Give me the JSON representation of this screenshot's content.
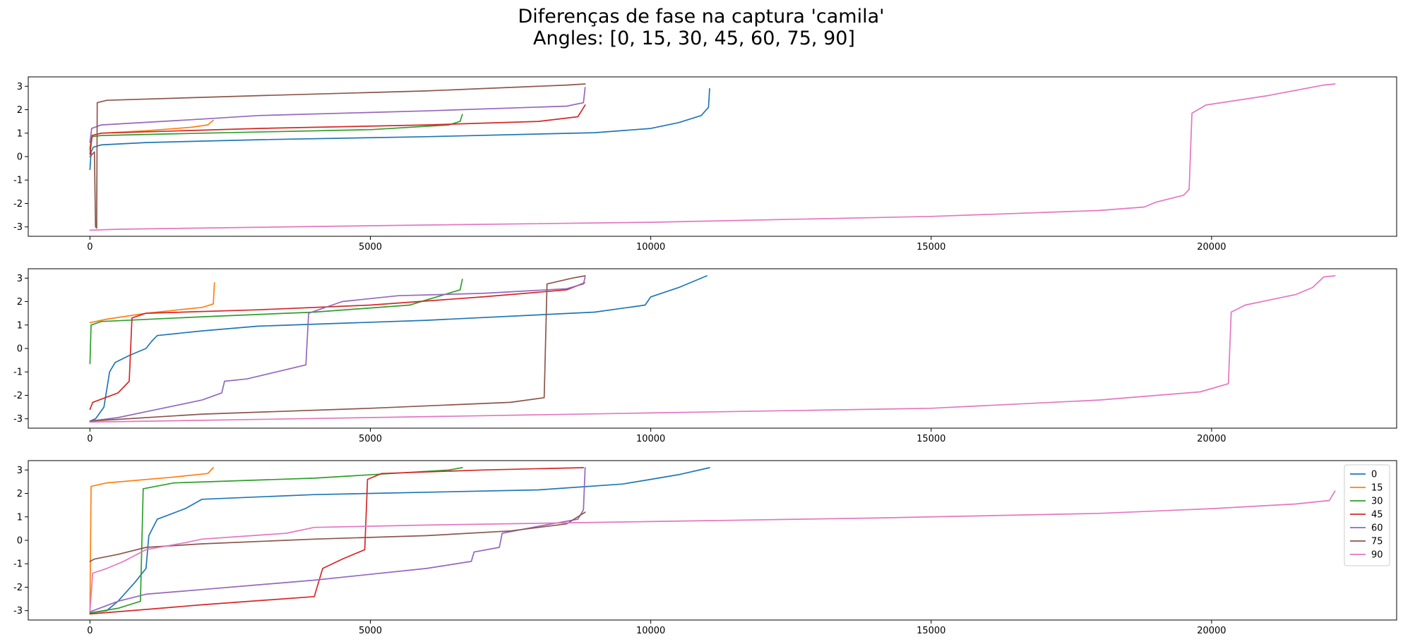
{
  "title": {
    "line1": "Diferenças de fase na captura 'camila'",
    "line2": "Angles: [0, 15, 30, 45, 60, 75, 90]"
  },
  "chart_data": [
    {
      "type": "line",
      "xlim": [
        -1100,
        23300
      ],
      "ylim": [
        -3.4,
        3.4
      ],
      "xticks": [
        0,
        5000,
        10000,
        15000,
        20000
      ],
      "xtick_labels": [
        "0",
        "5000",
        "10000",
        "15000",
        "20000"
      ],
      "yticks": [
        -3,
        -2,
        -1,
        0,
        1,
        2,
        3
      ],
      "ytick_labels": [
        "-3",
        "-2",
        "-1",
        "0",
        "1",
        "2",
        "3"
      ],
      "series": [
        {
          "color": "#1f77b4",
          "points": [
            [
              0,
              -0.55
            ],
            [
              20,
              0.2
            ],
            [
              60,
              0.4
            ],
            [
              200,
              0.5
            ],
            [
              1000,
              0.6
            ],
            [
              3000,
              0.72
            ],
            [
              6000,
              0.85
            ],
            [
              9000,
              1.02
            ],
            [
              10000,
              1.2
            ],
            [
              10500,
              1.45
            ],
            [
              10900,
              1.75
            ],
            [
              11030,
              2.1
            ],
            [
              11050,
              2.9
            ]
          ]
        },
        {
          "color": "#ff7f0e",
          "points": [
            [
              0,
              0.4
            ],
            [
              40,
              0.9
            ],
            [
              200,
              1.0
            ],
            [
              1000,
              1.1
            ],
            [
              1800,
              1.25
            ],
            [
              2100,
              1.35
            ],
            [
              2200,
              1.55
            ]
          ]
        },
        {
          "color": "#2ca02c",
          "points": [
            [
              0,
              0.3
            ],
            [
              40,
              0.85
            ],
            [
              200,
              0.9
            ],
            [
              2000,
              1.0
            ],
            [
              5000,
              1.15
            ],
            [
              6400,
              1.35
            ],
            [
              6600,
              1.5
            ],
            [
              6640,
              1.8
            ]
          ]
        },
        {
          "color": "#d62728",
          "points": [
            [
              0,
              0.1
            ],
            [
              40,
              0.9
            ],
            [
              200,
              1.0
            ],
            [
              3000,
              1.2
            ],
            [
              6000,
              1.35
            ],
            [
              8000,
              1.5
            ],
            [
              8700,
              1.7
            ],
            [
              8830,
              2.2
            ]
          ]
        },
        {
          "color": "#9467bd",
          "points": [
            [
              0,
              0.6
            ],
            [
              30,
              1.2
            ],
            [
              200,
              1.35
            ],
            [
              2000,
              1.6
            ],
            [
              3000,
              1.75
            ],
            [
              6000,
              1.95
            ],
            [
              8500,
              2.15
            ],
            [
              8800,
              2.3
            ],
            [
              8830,
              2.95
            ]
          ]
        },
        {
          "color": "#8c564b",
          "points": [
            [
              0,
              0.0
            ],
            [
              80,
              0.2
            ],
            [
              100,
              -3.0
            ],
            [
              120,
              -3.05
            ],
            [
              130,
              2.3
            ],
            [
              300,
              2.4
            ],
            [
              3000,
              2.6
            ],
            [
              6000,
              2.8
            ],
            [
              8500,
              3.05
            ],
            [
              8830,
              3.1
            ]
          ]
        },
        {
          "color": "#e377c2",
          "points": [
            [
              0,
              -3.14
            ],
            [
              500,
              -3.1
            ],
            [
              5000,
              -2.95
            ],
            [
              10000,
              -2.8
            ],
            [
              15000,
              -2.55
            ],
            [
              18000,
              -2.3
            ],
            [
              18800,
              -2.15
            ],
            [
              19000,
              -1.95
            ],
            [
              19500,
              -1.65
            ],
            [
              19600,
              -1.4
            ],
            [
              19650,
              1.85
            ],
            [
              19900,
              2.2
            ],
            [
              21000,
              2.6
            ],
            [
              22000,
              3.05
            ],
            [
              22200,
              3.1
            ]
          ]
        }
      ]
    },
    {
      "type": "line",
      "xlim": [
        -1100,
        23300
      ],
      "ylim": [
        -3.4,
        3.4
      ],
      "xticks": [
        0,
        5000,
        10000,
        15000,
        20000
      ],
      "xtick_labels": [
        "0",
        "5000",
        "10000",
        "15000",
        "20000"
      ],
      "yticks": [
        -3,
        -2,
        -1,
        0,
        1,
        2,
        3
      ],
      "ytick_labels": [
        "-3",
        "-2",
        "-1",
        "0",
        "1",
        "2",
        "3"
      ],
      "series": [
        {
          "color": "#1f77b4",
          "points": [
            [
              0,
              -3.1
            ],
            [
              100,
              -3.0
            ],
            [
              250,
              -2.5
            ],
            [
              350,
              -1.0
            ],
            [
              450,
              -0.6
            ],
            [
              700,
              -0.3
            ],
            [
              1000,
              0.0
            ],
            [
              1100,
              0.3
            ],
            [
              1200,
              0.55
            ],
            [
              2000,
              0.75
            ],
            [
              3000,
              0.95
            ],
            [
              6000,
              1.2
            ],
            [
              9000,
              1.55
            ],
            [
              9900,
              1.85
            ],
            [
              10000,
              2.2
            ],
            [
              10500,
              2.6
            ],
            [
              11000,
              3.1
            ]
          ]
        },
        {
          "color": "#ff7f0e",
          "points": [
            [
              0,
              1.1
            ],
            [
              300,
              1.25
            ],
            [
              1000,
              1.5
            ],
            [
              2000,
              1.75
            ],
            [
              2200,
              1.9
            ],
            [
              2220,
              2.8
            ]
          ]
        },
        {
          "color": "#2ca02c",
          "points": [
            [
              0,
              -0.65
            ],
            [
              20,
              1.0
            ],
            [
              200,
              1.15
            ],
            [
              2000,
              1.35
            ],
            [
              4000,
              1.55
            ],
            [
              5700,
              1.85
            ],
            [
              6600,
              2.5
            ],
            [
              6640,
              2.95
            ]
          ]
        },
        {
          "color": "#d62728",
          "points": [
            [
              0,
              -2.6
            ],
            [
              50,
              -2.3
            ],
            [
              500,
              -1.9
            ],
            [
              700,
              -1.4
            ],
            [
              750,
              1.3
            ],
            [
              1000,
              1.5
            ],
            [
              3000,
              1.65
            ],
            [
              5000,
              1.85
            ],
            [
              7000,
              2.2
            ],
            [
              8500,
              2.5
            ],
            [
              8820,
              2.8
            ]
          ]
        },
        {
          "color": "#9467bd",
          "points": [
            [
              0,
              -3.1
            ],
            [
              500,
              -2.95
            ],
            [
              1000,
              -2.7
            ],
            [
              2000,
              -2.2
            ],
            [
              2350,
              -1.9
            ],
            [
              2400,
              -1.4
            ],
            [
              2800,
              -1.3
            ],
            [
              3500,
              -0.9
            ],
            [
              3850,
              -0.7
            ],
            [
              3900,
              1.5
            ],
            [
              4500,
              2.0
            ],
            [
              5500,
              2.25
            ],
            [
              7000,
              2.35
            ],
            [
              8500,
              2.55
            ],
            [
              8800,
              2.75
            ],
            [
              8830,
              3.05
            ]
          ]
        },
        {
          "color": "#8c564b",
          "points": [
            [
              0,
              -3.1
            ],
            [
              2000,
              -2.8
            ],
            [
              5000,
              -2.55
            ],
            [
              7500,
              -2.3
            ],
            [
              8100,
              -2.1
            ],
            [
              8150,
              2.75
            ],
            [
              8600,
              3.0
            ],
            [
              8830,
              3.1
            ]
          ]
        },
        {
          "color": "#e377c2",
          "points": [
            [
              0,
              -3.14
            ],
            [
              5000,
              -2.95
            ],
            [
              10000,
              -2.75
            ],
            [
              15000,
              -2.55
            ],
            [
              18000,
              -2.2
            ],
            [
              19800,
              -1.85
            ],
            [
              20300,
              -1.5
            ],
            [
              20350,
              1.55
            ],
            [
              20600,
              1.85
            ],
            [
              21500,
              2.3
            ],
            [
              21800,
              2.6
            ],
            [
              22000,
              3.05
            ],
            [
              22200,
              3.1
            ]
          ]
        }
      ]
    },
    {
      "type": "line",
      "xlim": [
        -1100,
        23300
      ],
      "ylim": [
        -3.4,
        3.4
      ],
      "xticks": [
        0,
        5000,
        10000,
        15000,
        20000
      ],
      "xtick_labels": [
        "0",
        "5000",
        "10000",
        "15000",
        "20000"
      ],
      "yticks": [
        -3,
        -2,
        -1,
        0,
        1,
        2,
        3
      ],
      "ytick_labels": [
        "-3",
        "-2",
        "-1",
        "0",
        "1",
        "2",
        "3"
      ],
      "legend_position": "top-right",
      "series": [
        {
          "name": "0",
          "color": "#1f77b4",
          "points": [
            [
              0,
              -3.1
            ],
            [
              300,
              -3.0
            ],
            [
              500,
              -2.6
            ],
            [
              800,
              -1.8
            ],
            [
              1000,
              -1.2
            ],
            [
              1050,
              0.2
            ],
            [
              1200,
              0.9
            ],
            [
              1700,
              1.35
            ],
            [
              2000,
              1.75
            ],
            [
              4000,
              1.95
            ],
            [
              8000,
              2.15
            ],
            [
              9500,
              2.4
            ],
            [
              10000,
              2.6
            ],
            [
              10500,
              2.8
            ],
            [
              11050,
              3.1
            ]
          ]
        },
        {
          "color": "#ff7f0e",
          "name": "15",
          "points": [
            [
              0,
              -3.0
            ],
            [
              20,
              2.3
            ],
            [
              300,
              2.45
            ],
            [
              1500,
              2.7
            ],
            [
              2100,
              2.85
            ],
            [
              2200,
              3.1
            ]
          ]
        },
        {
          "color": "#2ca02c",
          "name": "30",
          "points": [
            [
              0,
              -3.1
            ],
            [
              500,
              -2.9
            ],
            [
              900,
              -2.6
            ],
            [
              950,
              2.2
            ],
            [
              1500,
              2.45
            ],
            [
              4000,
              2.65
            ],
            [
              6400,
              3.0
            ],
            [
              6640,
              3.1
            ]
          ]
        },
        {
          "color": "#d62728",
          "name": "45",
          "points": [
            [
              0,
              -3.14
            ],
            [
              1000,
              -2.95
            ],
            [
              2000,
              -2.75
            ],
            [
              4000,
              -2.4
            ],
            [
              4150,
              -1.2
            ],
            [
              4500,
              -0.8
            ],
            [
              4900,
              -0.4
            ],
            [
              4950,
              2.6
            ],
            [
              5200,
              2.85
            ],
            [
              7000,
              3.0
            ],
            [
              8800,
              3.1
            ]
          ]
        },
        {
          "color": "#9467bd",
          "name": "60",
          "points": [
            [
              0,
              -3.05
            ],
            [
              500,
              -2.6
            ],
            [
              1000,
              -2.3
            ],
            [
              2000,
              -2.1
            ],
            [
              4000,
              -1.7
            ],
            [
              5000,
              -1.45
            ],
            [
              6000,
              -1.2
            ],
            [
              6800,
              -0.9
            ],
            [
              6850,
              -0.5
            ],
            [
              7300,
              -0.3
            ],
            [
              7350,
              0.3
            ],
            [
              8000,
              0.6
            ],
            [
              8700,
              0.9
            ],
            [
              8800,
              1.3
            ],
            [
              8830,
              3.1
            ]
          ]
        },
        {
          "color": "#8c564b",
          "name": "75",
          "points": [
            [
              0,
              -0.9
            ],
            [
              80,
              -0.8
            ],
            [
              500,
              -0.6
            ],
            [
              1000,
              -0.3
            ],
            [
              2000,
              -0.15
            ],
            [
              4000,
              0.05
            ],
            [
              6000,
              0.2
            ],
            [
              7500,
              0.4
            ],
            [
              8500,
              0.7
            ],
            [
              8830,
              1.2
            ]
          ]
        },
        {
          "color": "#e377c2",
          "name": "90",
          "points": [
            [
              0,
              -3.0
            ],
            [
              50,
              -1.4
            ],
            [
              300,
              -1.2
            ],
            [
              600,
              -0.9
            ],
            [
              1000,
              -0.4
            ],
            [
              1700,
              -0.1
            ],
            [
              2000,
              0.05
            ],
            [
              3500,
              0.3
            ],
            [
              4000,
              0.55
            ],
            [
              6000,
              0.65
            ],
            [
              10000,
              0.8
            ],
            [
              14000,
              0.95
            ],
            [
              18000,
              1.15
            ],
            [
              20000,
              1.35
            ],
            [
              21500,
              1.55
            ],
            [
              22100,
              1.7
            ],
            [
              22200,
              2.1
            ]
          ]
        }
      ]
    }
  ]
}
